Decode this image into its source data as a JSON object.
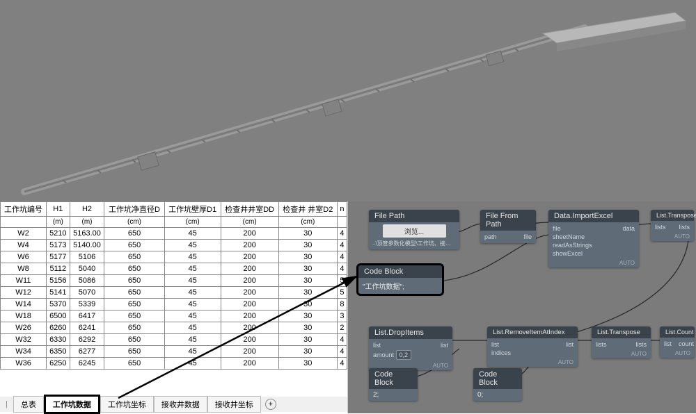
{
  "viewport": {
    "background": "#808080"
  },
  "table": {
    "columns_main": [
      "工作坑编号",
      "H1",
      "H2",
      "工作坑净直径D",
      "工作坑壁厚D1",
      "检查井井室DD",
      "检查井 井室D2",
      "n"
    ],
    "columns_sub": [
      "",
      "(m)",
      "(m)",
      "(cm)",
      "(cm)",
      "(cm)",
      "(cm)",
      ""
    ],
    "rows": [
      [
        "W2",
        "5210",
        "5163.00",
        "650",
        "45",
        "200",
        "30",
        "4"
      ],
      [
        "W4",
        "5173",
        "5140.00",
        "650",
        "45",
        "200",
        "30",
        "4"
      ],
      [
        "W6",
        "5177",
        "5106",
        "650",
        "45",
        "200",
        "30",
        "4"
      ],
      [
        "W8",
        "5112",
        "5040",
        "650",
        "45",
        "200",
        "30",
        "4"
      ],
      [
        "W11",
        "5156",
        "5086",
        "650",
        "45",
        "200",
        "30",
        "5"
      ],
      [
        "W12",
        "5141",
        "5070",
        "650",
        "45",
        "200",
        "30",
        "5"
      ],
      [
        "W14",
        "5370",
        "5339",
        "650",
        "45",
        "200",
        "30",
        "8"
      ],
      [
        "W18",
        "6500",
        "6417",
        "650",
        "45",
        "200",
        "30",
        "3"
      ],
      [
        "W26",
        "6260",
        "6241",
        "650",
        "45",
        "200",
        "30",
        "2"
      ],
      [
        "W32",
        "6330",
        "6292",
        "650",
        "45",
        "200",
        "30",
        "4"
      ],
      [
        "W34",
        "6350",
        "6277",
        "650",
        "45",
        "200",
        "30",
        "4"
      ],
      [
        "W36",
        "6250",
        "6245",
        "650",
        "45",
        "200",
        "30",
        "4"
      ]
    ]
  },
  "sheets": {
    "tabs": [
      "总表",
      "工作坑数据",
      "工作坑坐标",
      "接收井数据",
      "接收井坐标"
    ],
    "active_index": 1
  },
  "nodes": {
    "filepath": {
      "title": "File Path",
      "browse": "浏览...",
      "path_text": "..\\顶管参数化模型\\工作坑、接收井参数化数据表.xlsx"
    },
    "filefrompath": {
      "title": "File From Path",
      "in": "path",
      "out": "file"
    },
    "importexcel": {
      "title": "Data.ImportExcel",
      "ins": [
        "file",
        "sheetName",
        "readAsStrings",
        "showExcel"
      ],
      "out": "data"
    },
    "transpose1": {
      "title": "List.Transpose",
      "in": "lists",
      "out": "lists"
    },
    "codeblock1": {
      "title": "Code Block",
      "code": "\"工作坑数据\";"
    },
    "dropitems": {
      "title": "List.DropItems",
      "ins": [
        "list",
        "amount"
      ],
      "out": "list",
      "slot": "0,2"
    },
    "removeat": {
      "title": "List.RemoveItemAtIndex",
      "ins": [
        "list",
        "indices"
      ],
      "out": "list"
    },
    "transpose2": {
      "title": "List.Transpose",
      "in": "lists",
      "out": "lists"
    },
    "count": {
      "title": "List.Count",
      "in": "list",
      "out": "count"
    },
    "codeblock2": {
      "title": "Code Block",
      "code": "2;"
    },
    "codeblock3": {
      "title": "Code Block",
      "code": "0;"
    },
    "auto_label": "AUTO"
  }
}
